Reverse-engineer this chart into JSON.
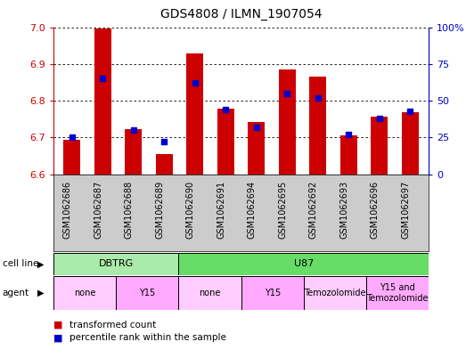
{
  "title": "GDS4808 / ILMN_1907054",
  "samples": [
    "GSM1062686",
    "GSM1062687",
    "GSM1062688",
    "GSM1062689",
    "GSM1062690",
    "GSM1062691",
    "GSM1062694",
    "GSM1062695",
    "GSM1062692",
    "GSM1062693",
    "GSM1062696",
    "GSM1062697"
  ],
  "transformed_count": [
    6.694,
    6.997,
    6.722,
    6.655,
    6.928,
    6.779,
    6.743,
    6.885,
    6.865,
    6.705,
    6.756,
    6.769
  ],
  "percentile_rank": [
    25,
    65,
    30,
    22,
    62,
    44,
    32,
    55,
    52,
    27,
    38,
    43
  ],
  "ylim_left": [
    6.6,
    7.0
  ],
  "ylim_right": [
    0,
    100
  ],
  "yticks_left": [
    6.6,
    6.7,
    6.8,
    6.9,
    7.0
  ],
  "yticks_right": [
    0,
    25,
    50,
    75,
    100
  ],
  "ytick_labels_right": [
    "0",
    "25",
    "50",
    "75",
    "100%"
  ],
  "bar_color": "#cc0000",
  "dot_color": "#0000cc",
  "cell_line_groups": [
    {
      "label": "DBTRG",
      "start": 0,
      "end": 4,
      "color": "#aaeaaa"
    },
    {
      "label": "U87",
      "start": 4,
      "end": 12,
      "color": "#66dd66"
    }
  ],
  "agent_groups": [
    {
      "label": "none",
      "start": 0,
      "end": 2,
      "color": "#ffccff"
    },
    {
      "label": "Y15",
      "start": 2,
      "end": 4,
      "color": "#ffaaff"
    },
    {
      "label": "none",
      "start": 4,
      "end": 6,
      "color": "#ffccff"
    },
    {
      "label": "Y15",
      "start": 6,
      "end": 8,
      "color": "#ffaaff"
    },
    {
      "label": "Temozolomide",
      "start": 8,
      "end": 10,
      "color": "#ffccff"
    },
    {
      "label": "Y15 and\nTemozolomide",
      "start": 10,
      "end": 12,
      "color": "#ffaaff"
    }
  ],
  "legend": [
    {
      "label": "transformed count",
      "color": "#cc0000"
    },
    {
      "label": "percentile rank within the sample",
      "color": "#0000cc"
    }
  ],
  "bar_width": 0.55,
  "base_value": 6.6,
  "left_tick_color": "#cc0000",
  "right_tick_color": "#0000cc",
  "xtick_bg_color": "#cccccc"
}
